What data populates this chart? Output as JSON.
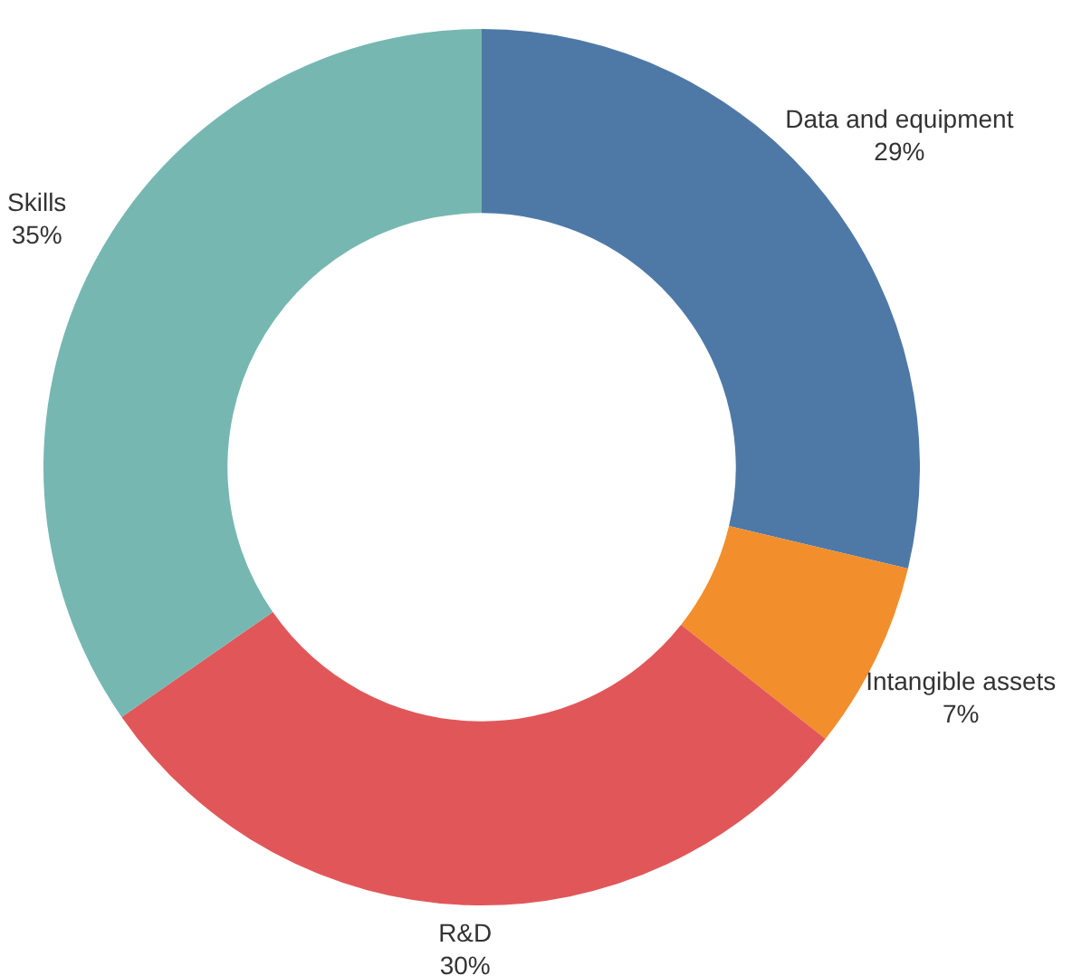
{
  "chart_data": {
    "type": "donut",
    "categories": [
      "Data and equipment",
      "Intangible assets",
      "R&D",
      "Skills"
    ],
    "values": [
      29,
      7,
      30,
      35
    ],
    "value_labels": [
      "29%",
      "7%",
      "30%",
      "35%"
    ],
    "colors": [
      "#4e79a7",
      "#f28e2b",
      "#e15759",
      "#76b7b2"
    ],
    "legend": false
  }
}
